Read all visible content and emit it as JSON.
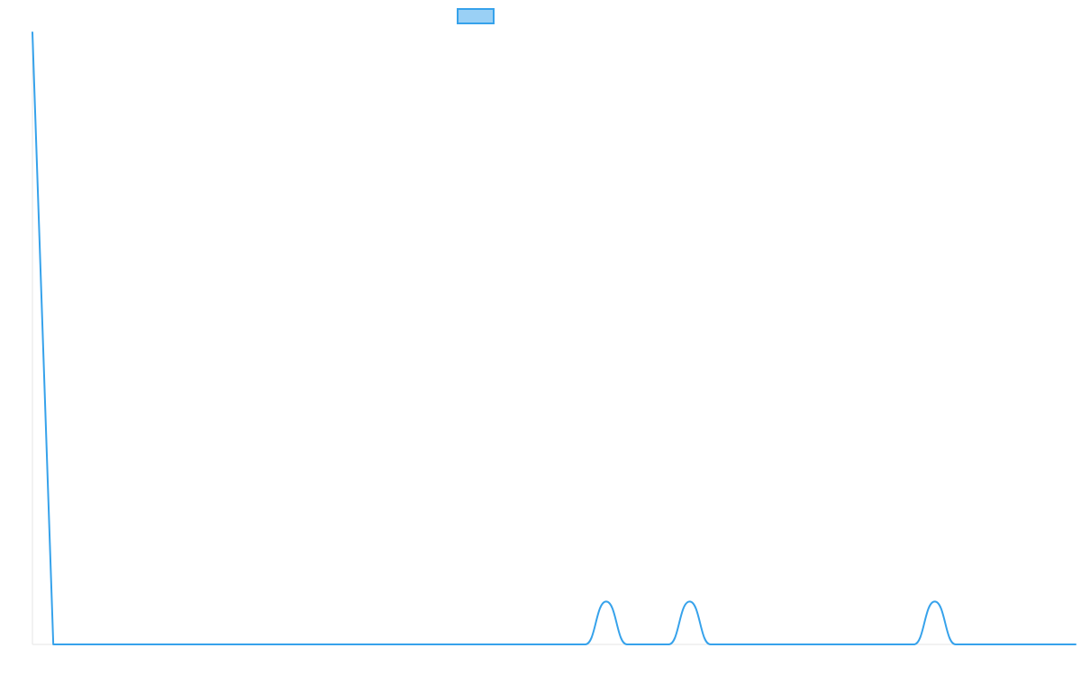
{
  "chart_data": {
    "type": "line",
    "title": "",
    "xlabel": "",
    "ylabel": "",
    "legend": {
      "placement": "top-center",
      "label": ""
    },
    "xlim": [
      0,
      100
    ],
    "ylim": [
      0,
      100
    ],
    "grid": false,
    "series": [
      {
        "color": "#36a2eb",
        "fill": "#9ad0f5",
        "points": [
          [
            0,
            100
          ],
          [
            2,
            0
          ],
          [
            53,
            0
          ],
          [
            55,
            7
          ],
          [
            57,
            0
          ],
          [
            61,
            0
          ],
          [
            63,
            7
          ],
          [
            65,
            0
          ],
          [
            84.5,
            0
          ],
          [
            86.5,
            7
          ],
          [
            88.5,
            0
          ],
          [
            100,
            0
          ]
        ]
      }
    ]
  }
}
